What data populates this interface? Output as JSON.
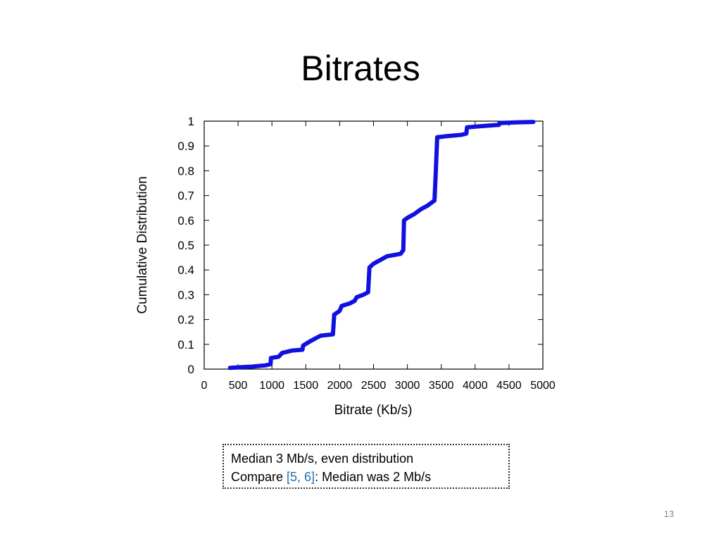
{
  "slide": {
    "title": "Bitrates",
    "page_number": "13"
  },
  "note": {
    "line1": "Median 3 Mb/s, even distribution",
    "line2_before": "Compare ",
    "line2_link": "[5, 6]",
    "line2_after": ": Median was 2 Mb/s",
    "link_color": "#1f6fb2"
  },
  "chart_data": {
    "type": "line",
    "title": "",
    "xlabel": "Bitrate (Kb/s)",
    "ylabel": "Cumulative Distribution",
    "xlim": [
      0,
      5000
    ],
    "ylim": [
      0,
      1
    ],
    "x_ticks": [
      "0",
      "500",
      "1000",
      "1500",
      "2000",
      "2500",
      "3000",
      "3500",
      "4000",
      "4500",
      "5000"
    ],
    "y_ticks": [
      "0",
      "0.1",
      "0.2",
      "0.3",
      "0.4",
      "0.5",
      "0.6",
      "0.7",
      "0.8",
      "0.9",
      "1"
    ],
    "grid": false,
    "series_color": "#1010e0",
    "series": [
      {
        "values": [
          [
            380,
            0.005
          ],
          [
            500,
            0.007
          ],
          [
            700,
            0.01
          ],
          [
            900,
            0.015
          ],
          [
            980,
            0.02
          ],
          [
            985,
            0.045
          ],
          [
            1100,
            0.05
          ],
          [
            1150,
            0.065
          ],
          [
            1300,
            0.075
          ],
          [
            1450,
            0.078
          ],
          [
            1460,
            0.095
          ],
          [
            1550,
            0.11
          ],
          [
            1650,
            0.125
          ],
          [
            1720,
            0.135
          ],
          [
            1900,
            0.14
          ],
          [
            1920,
            0.22
          ],
          [
            2000,
            0.235
          ],
          [
            2030,
            0.255
          ],
          [
            2150,
            0.265
          ],
          [
            2220,
            0.275
          ],
          [
            2250,
            0.29
          ],
          [
            2350,
            0.3
          ],
          [
            2420,
            0.31
          ],
          [
            2440,
            0.41
          ],
          [
            2500,
            0.425
          ],
          [
            2600,
            0.44
          ],
          [
            2700,
            0.455
          ],
          [
            2900,
            0.465
          ],
          [
            2940,
            0.48
          ],
          [
            2950,
            0.6
          ],
          [
            3000,
            0.61
          ],
          [
            3100,
            0.625
          ],
          [
            3200,
            0.645
          ],
          [
            3300,
            0.66
          ],
          [
            3400,
            0.68
          ],
          [
            3420,
            0.8
          ],
          [
            3440,
            0.935
          ],
          [
            3600,
            0.94
          ],
          [
            3800,
            0.945
          ],
          [
            3870,
            0.95
          ],
          [
            3880,
            0.975
          ],
          [
            4100,
            0.98
          ],
          [
            4350,
            0.985
          ],
          [
            4360,
            0.992
          ],
          [
            4600,
            0.995
          ],
          [
            4860,
            0.997
          ]
        ]
      }
    ]
  }
}
